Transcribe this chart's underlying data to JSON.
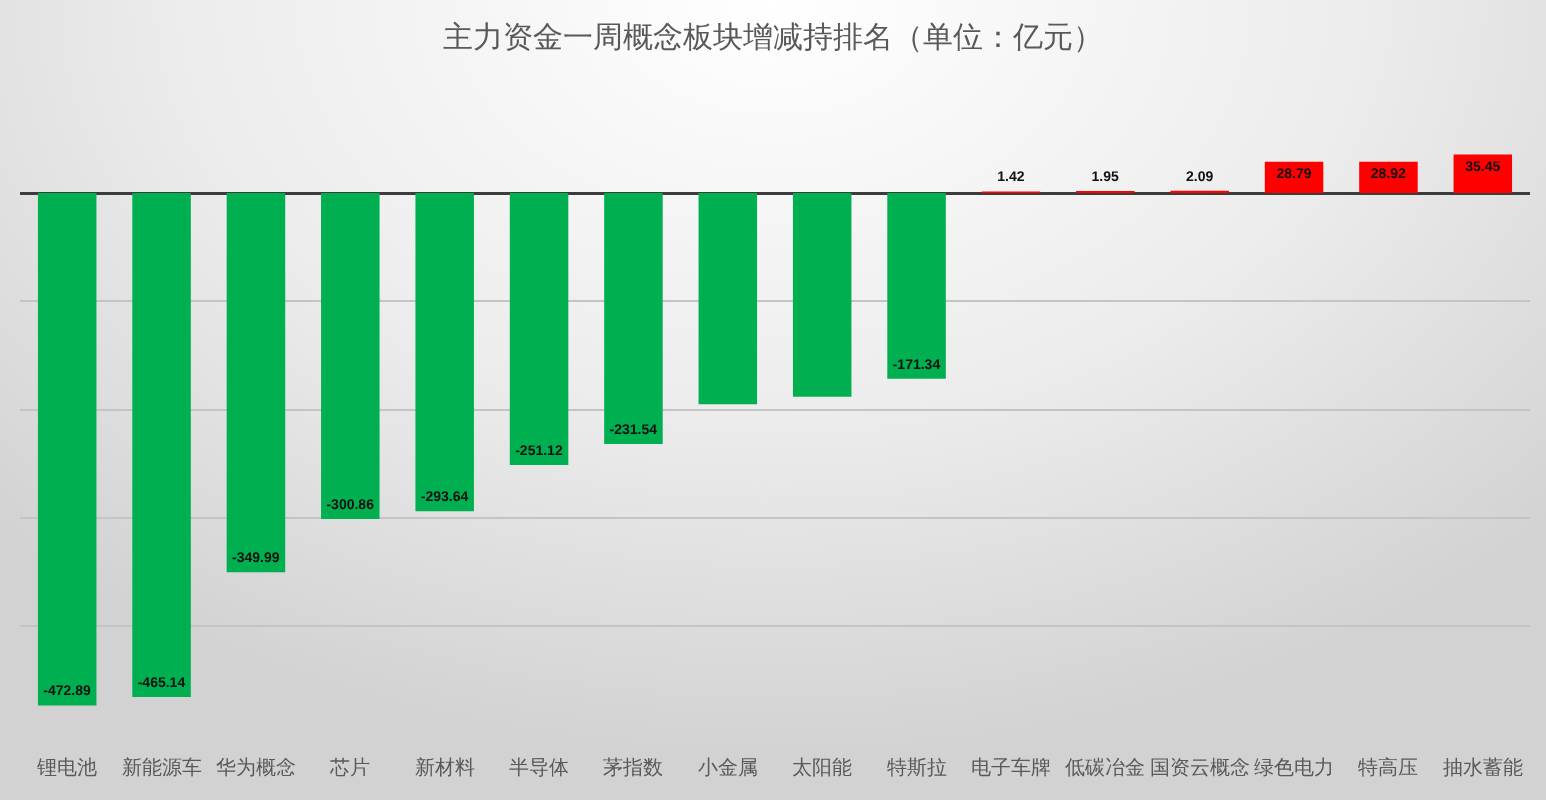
{
  "chart_data": {
    "type": "bar",
    "title": "主力资金一周概念板块增减持排名（单位：亿元）",
    "categories": [
      "锂电池",
      "新能源车",
      "华为概念",
      "芯片",
      "新材料",
      "半导体",
      "茅指数",
      "小金属",
      "太阳能",
      "特斯拉",
      "电子车牌",
      "低碳冶金",
      "国资云概念",
      "绿色电力",
      "特高压",
      "抽水蓄能"
    ],
    "values": [
      -472.89,
      -465.14,
      -349.99,
      -300.86,
      -293.64,
      -251.12,
      -231.54,
      -195,
      -188,
      -171.34,
      1.42,
      1.95,
      2.09,
      28.79,
      28.92,
      35.45
    ],
    "value_labels": [
      "-472.89",
      "-465.14",
      "-349.99",
      "-300.86",
      "-293.64",
      "-251.12",
      "-231.54",
      null,
      null,
      "-171.34",
      "1.42",
      "1.95",
      "2.09",
      "28.79",
      "28.92",
      "35.45"
    ],
    "colors": [
      "#00b050",
      "#00b050",
      "#00b050",
      "#00b050",
      "#00b050",
      "#00b050",
      "#00b050",
      "#00b050",
      "#00b050",
      "#00b050",
      "#ff0000",
      "#ff0000",
      "#ff0000",
      "#ff0000",
      "#ff0000",
      "#ff0000"
    ],
    "grid": "y",
    "tick_labels": "x"
  }
}
